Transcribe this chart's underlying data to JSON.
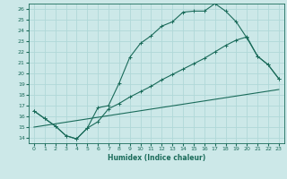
{
  "xlabel": "Humidex (Indice chaleur)",
  "bg_color": "#cce8e8",
  "line_color": "#1a6b5a",
  "grid_color": "#b0d8d8",
  "xlim": [
    -0.5,
    23.5
  ],
  "ylim": [
    13.5,
    26.5
  ],
  "xticks": [
    0,
    1,
    2,
    3,
    4,
    5,
    6,
    7,
    8,
    9,
    10,
    11,
    12,
    13,
    14,
    15,
    16,
    17,
    18,
    19,
    20,
    21,
    22,
    23
  ],
  "yticks": [
    14,
    15,
    16,
    17,
    18,
    19,
    20,
    21,
    22,
    23,
    24,
    25,
    26
  ],
  "curve1_x": [
    0,
    1,
    2,
    3,
    4,
    5,
    6,
    7,
    8,
    9,
    10,
    11,
    12,
    13,
    14,
    15,
    16,
    17,
    18,
    19,
    20,
    21,
    22,
    23
  ],
  "curve1_y": [
    16.5,
    15.8,
    15.1,
    14.2,
    13.9,
    14.9,
    16.8,
    17.0,
    19.1,
    21.5,
    22.8,
    23.5,
    24.4,
    24.8,
    25.7,
    25.8,
    25.8,
    26.5,
    25.8,
    24.8,
    23.3,
    21.6,
    20.8,
    19.5
  ],
  "curve2_x": [
    0,
    1,
    2,
    3,
    4,
    5,
    6,
    7,
    8,
    9,
    10,
    11,
    12,
    13,
    14,
    15,
    16,
    17,
    18,
    19,
    20,
    21,
    22,
    23
  ],
  "curve2_y": [
    16.5,
    15.8,
    15.1,
    14.2,
    13.9,
    14.9,
    15.5,
    16.7,
    17.2,
    17.8,
    18.3,
    18.8,
    19.4,
    19.9,
    20.4,
    20.9,
    21.4,
    22.0,
    22.6,
    23.1,
    23.4,
    21.6,
    20.8,
    19.5
  ],
  "curve3_x": [
    0,
    23
  ],
  "curve3_y": [
    15.0,
    18.5
  ]
}
